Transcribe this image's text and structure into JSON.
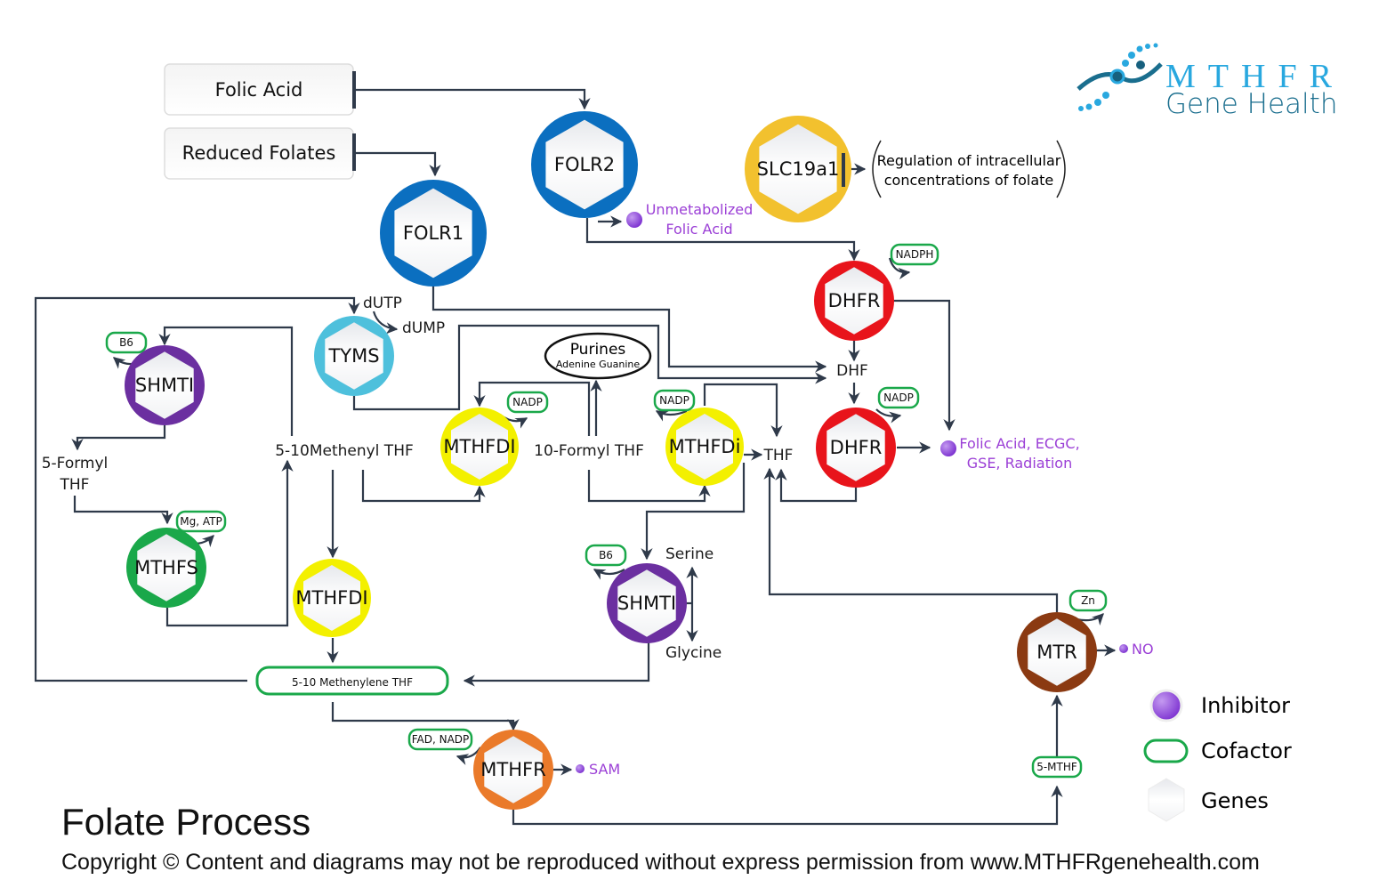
{
  "logo": {
    "line1": "MTHFR",
    "line2": "Gene Health"
  },
  "sources": [
    "Folic Acid",
    "Reduced Folates"
  ],
  "genes": {
    "folr2": "FOLR2",
    "folr1": "FOLR1",
    "slc19a1": "SLC19a1",
    "dhfr_top": "DHFR",
    "dhfr_bottom": "DHFR",
    "tyms": "TYMS",
    "shmti_left": "SHMTI",
    "mthfs": "MTHFS",
    "mthfdi_low": "MTHFDI",
    "mthfdi_mid": "MTHFDI",
    "mthfdi_right": "MTHFDi",
    "shmti_mid": "SHMTI",
    "mtr": "MTR",
    "mthfr": "MTHFR"
  },
  "gene_colors": {
    "folr": "#0b6fc0",
    "slc19a1": "#f2c12e",
    "dhfr": "#e8141b",
    "tyms": "#4ec0dc",
    "shmti": "#6b2fa0",
    "mthfs": "#1aa84a",
    "mthfdi": "#f3f000",
    "mtr": "#8b3a12",
    "mthfr": "#ea7a2a"
  },
  "cofactors": {
    "b6_left": "B6",
    "mg_atp": "Mg, ATP",
    "nadp_mid": "NADP",
    "nadp_right": "NADP",
    "nadph": "NADPH",
    "nadp_dhfr": "NADP",
    "b6_mid": "B6",
    "zn": "Zn",
    "fad_nadp": "FAD, NADP",
    "five_mthf": "5-MTHF",
    "methenylene": "5-10 Methenylene THF"
  },
  "metabolites": {
    "dutp": "dUTP",
    "dump": "dUMP",
    "formyl5_a": "5-Formyl",
    "formyl5_b": "THF",
    "methenyl": "5-10Methenyl THF",
    "formyl10": "10-Formyl THF",
    "dhf": "DHF",
    "thf": "THF",
    "serine": "Serine",
    "glycine": "Glycine",
    "purines": "Purines",
    "purines_sub": "Adenine Guanine"
  },
  "regulation": [
    "Regulation of intracellular",
    "concentrations of folate"
  ],
  "inhibitors": {
    "unmet_a": "Unmetabolized",
    "unmet_b": "Folic Acid",
    "folic_a": "Folic Acid, ECGC,",
    "folic_b": "GSE, Radiation",
    "no": "NO",
    "sam": "SAM",
    "color": "#9b3fd6"
  },
  "legend": {
    "inhibitor": "Inhibitor",
    "cofactor": "Cofactor",
    "genes": "Genes"
  },
  "title": "Folate Process",
  "copyright": "Copyright © Content and diagrams may not be reproduced without express permission from www.MTHFRgenehealth.com"
}
